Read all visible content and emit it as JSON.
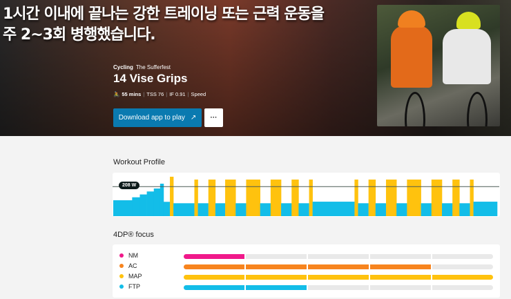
{
  "hero": {
    "headline_line1": "1시간 이내에 끝나는 강한 트레이닝 또는 근력 운동을",
    "headline_line2": "주 2~3회 병행했습니다.",
    "category": "Cycling",
    "series": "The Sufferfest",
    "title": "14 Vise Grips",
    "duration": "55 mins",
    "tss": "TSS 76",
    "if": "IF 0.91",
    "type": "Speed",
    "download_label": "Download app to play",
    "more_label": "···"
  },
  "profile": {
    "heading": "Workout Profile",
    "ftp_label": "208 W",
    "ftp_watts": 208,
    "colors": {
      "endurance": "#13bde8",
      "hard": "#ffc20e"
    },
    "segments": [
      [
        2.7,
        112,
        "b"
      ],
      [
        1.1,
        133,
        "b"
      ],
      [
        1.0,
        153,
        "b"
      ],
      [
        1.0,
        174,
        "b"
      ],
      [
        0.9,
        195,
        "b"
      ],
      [
        0.5,
        229,
        "b"
      ],
      [
        0.9,
        101,
        "b"
      ],
      [
        0.5,
        278,
        "y"
      ],
      [
        3.0,
        91,
        "b"
      ],
      [
        0.5,
        258,
        "y"
      ],
      [
        1.5,
        91,
        "b"
      ],
      [
        1.0,
        258,
        "y"
      ],
      [
        1.4,
        91,
        "b"
      ],
      [
        1.5,
        258,
        "y"
      ],
      [
        1.5,
        91,
        "b"
      ],
      [
        2.0,
        258,
        "y"
      ],
      [
        1.5,
        91,
        "b"
      ],
      [
        1.5,
        258,
        "y"
      ],
      [
        1.5,
        91,
        "b"
      ],
      [
        1.0,
        258,
        "y"
      ],
      [
        1.5,
        91,
        "b"
      ],
      [
        0.5,
        258,
        "y"
      ],
      [
        6.0,
        102,
        "b"
      ],
      [
        0.5,
        258,
        "y"
      ],
      [
        1.5,
        91,
        "b"
      ],
      [
        1.0,
        258,
        "y"
      ],
      [
        1.5,
        91,
        "b"
      ],
      [
        1.5,
        258,
        "y"
      ],
      [
        1.5,
        91,
        "b"
      ],
      [
        2.0,
        258,
        "y"
      ],
      [
        1.5,
        91,
        "b"
      ],
      [
        1.5,
        258,
        "y"
      ],
      [
        1.5,
        91,
        "b"
      ],
      [
        1.0,
        258,
        "y"
      ],
      [
        1.5,
        91,
        "b"
      ],
      [
        0.5,
        258,
        "y"
      ],
      [
        3.4,
        102,
        "b"
      ]
    ]
  },
  "focus": {
    "heading": "4DP® focus",
    "max_level": 5,
    "items": [
      {
        "label": "NM",
        "level": 1,
        "color": "#f0198a"
      },
      {
        "label": "AC",
        "level": 4,
        "color": "#f7841e"
      },
      {
        "label": "MAP",
        "level": 5,
        "color": "#ffc20e"
      },
      {
        "label": "FTP",
        "level": 2,
        "color": "#13bde8"
      }
    ]
  }
}
